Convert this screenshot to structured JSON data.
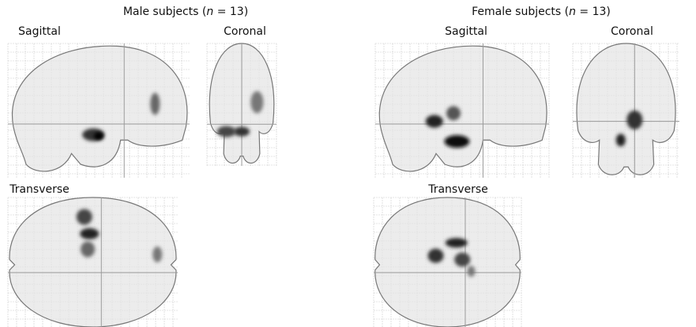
{
  "panels": [
    {
      "title": {
        "before": "Male subjects (",
        "variable": "n",
        "after": " = 13)"
      },
      "views": [
        "Sagittal",
        "Coronal",
        "Transverse"
      ]
    },
    {
      "title": {
        "before": "Female subjects (",
        "variable": "n",
        "after": " = 13)"
      },
      "views": [
        "Sagittal",
        "Coronal",
        "Transverse"
      ]
    }
  ]
}
